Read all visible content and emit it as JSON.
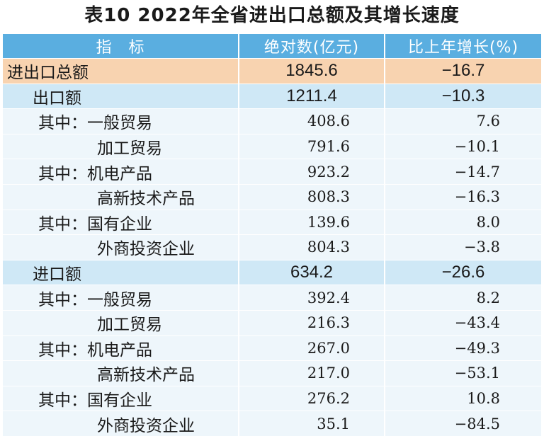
{
  "title": "表10   2022年全省进出口总额及其增长速度",
  "headers": [
    "指　标",
    "绝对数(亿元)",
    "比上年增长(%)"
  ],
  "rows": [
    {
      "label": "进出口总额",
      "value": "1845.6",
      "change": "−16.7"
    },
    {
      "label": "出口额",
      "value": "1211.4",
      "change": "−10.3"
    },
    {
      "label": "其中：一般贸易",
      "value": "408.6",
      "change": "7.6"
    },
    {
      "label": "加工贸易",
      "value": "791.6",
      "change": "−10.1"
    },
    {
      "label": "其中：机电产品",
      "value": "923.2",
      "change": "−14.7"
    },
    {
      "label": "高新技术产品",
      "value": "808.3",
      "change": "−16.3"
    },
    {
      "label": "其中：国有企业",
      "value": "139.6",
      "change": "8.0"
    },
    {
      "label": "外商投资企业",
      "value": "804.3",
      "change": "−3.8"
    },
    {
      "label": "进口额",
      "value": "634.2",
      "change": "−26.6"
    },
    {
      "label": "其中：一般贸易",
      "value": "392.4",
      "change": "8.2"
    },
    {
      "label": "加工贸易",
      "value": "216.3",
      "change": "−43.4"
    },
    {
      "label": "其中：机电产品",
      "value": "267.0",
      "change": "−49.3"
    },
    {
      "label": "高新技术产品",
      "value": "217.0",
      "change": "−53.1"
    },
    {
      "label": "其中：国有企业",
      "value": "276.2",
      "change": "10.8"
    },
    {
      "label": "外商投资企业",
      "value": "35.1",
      "change": "−84.5"
    }
  ],
  "colors": {
    "header_bg": "#5aaee0",
    "total_bg": "#f8d3b0",
    "section_bg": "#cfe8f6",
    "item_bg": "#eef6fb"
  }
}
